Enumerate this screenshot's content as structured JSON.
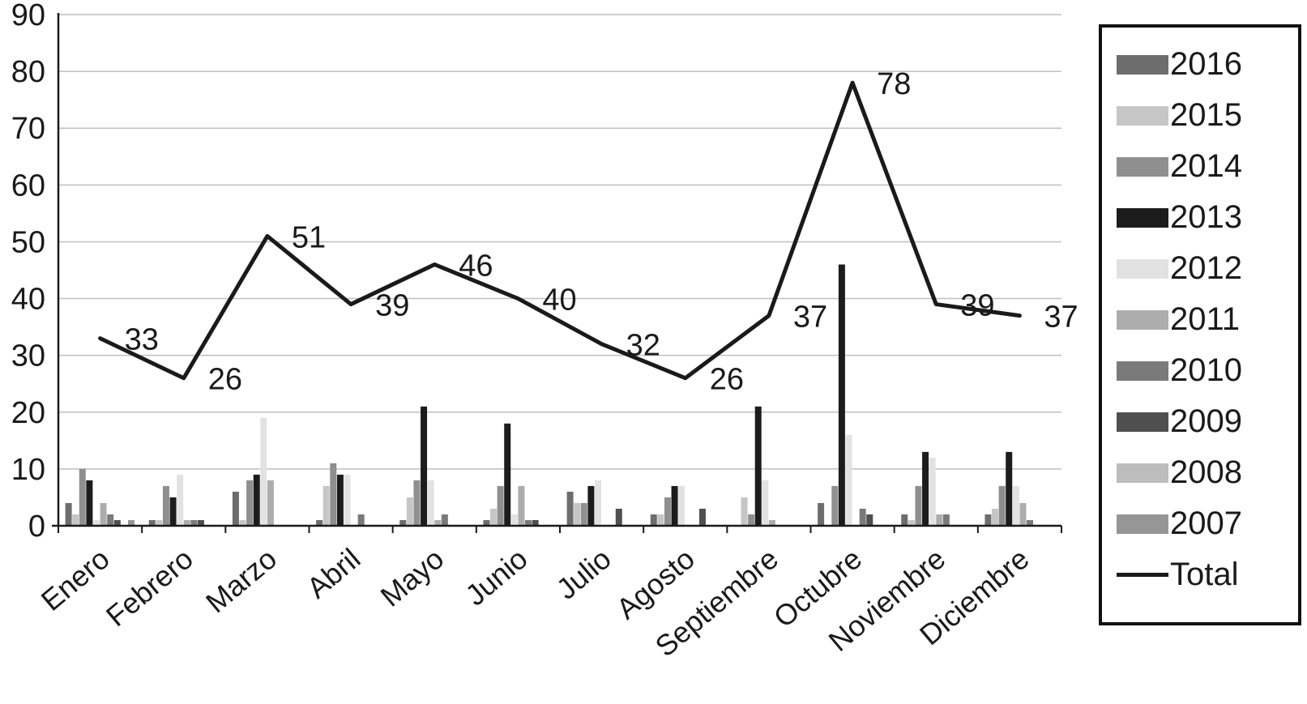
{
  "chart_data": {
    "type": "bar",
    "subtype": "grouped-bars-with-total-line",
    "categories": [
      "Enero",
      "Febrero",
      "Marzo",
      "Abril",
      "Mayo",
      "Junio",
      "Julio",
      "Agosto",
      "Septiembre",
      "Octubre",
      "Noviembre",
      "Diciembre"
    ],
    "series": [
      {
        "name": "2016",
        "color": "#6d6d6d",
        "values": [
          4,
          1,
          6,
          1,
          1,
          1,
          6,
          2,
          0,
          4,
          2,
          2
        ]
      },
      {
        "name": "2015",
        "color": "#c6c6c6",
        "values": [
          2,
          1,
          1,
          7,
          5,
          3,
          4,
          2,
          5,
          0,
          1,
          3
        ]
      },
      {
        "name": "2014",
        "color": "#8f8f8f",
        "values": [
          10,
          7,
          8,
          11,
          8,
          7,
          4,
          5,
          2,
          7,
          7,
          7
        ]
      },
      {
        "name": "2013",
        "color": "#1c1c1c",
        "values": [
          8,
          5,
          9,
          9,
          21,
          18,
          7,
          7,
          21,
          46,
          13,
          13
        ]
      },
      {
        "name": "2012",
        "color": "#e2e2e2",
        "values": [
          1,
          9,
          19,
          9,
          8,
          2,
          8,
          7,
          8,
          16,
          12,
          7
        ]
      },
      {
        "name": "2011",
        "color": "#adadad",
        "values": [
          4,
          1,
          8,
          0,
          1,
          7,
          0,
          0,
          1,
          0,
          2,
          4
        ]
      },
      {
        "name": "2010",
        "color": "#7a7a7a",
        "values": [
          2,
          1,
          0,
          2,
          2,
          1,
          0,
          0,
          0,
          3,
          2,
          1
        ]
      },
      {
        "name": "2009",
        "color": "#4f4f4f",
        "values": [
          1,
          1,
          0,
          0,
          0,
          1,
          3,
          3,
          0,
          2,
          0,
          0
        ]
      },
      {
        "name": "2008",
        "color": "#bdbdbd",
        "values": [
          0,
          0,
          0,
          0,
          0,
          0,
          0,
          0,
          0,
          0,
          0,
          0
        ]
      },
      {
        "name": "2007",
        "color": "#969696",
        "values": [
          1,
          0,
          0,
          0,
          0,
          0,
          0,
          0,
          0,
          0,
          0,
          0
        ]
      }
    ],
    "total_series": {
      "name": "Total",
      "color": "#1a1a1a",
      "values": [
        33,
        26,
        51,
        39,
        46,
        40,
        32,
        26,
        37,
        78,
        39,
        37
      ]
    },
    "title": "",
    "xlabel": "",
    "ylabel": "",
    "ylim": [
      0,
      90
    ],
    "ytick_step": 10,
    "yticks": [
      0,
      10,
      20,
      30,
      40,
      50,
      60,
      70,
      80,
      90
    ],
    "grid": "horizontal",
    "legend_position": "right",
    "legend_entries": [
      "2016",
      "2015",
      "2014",
      "2013",
      "2012",
      "2011",
      "2010",
      "2009",
      "2008",
      "2007",
      "Total"
    ]
  }
}
